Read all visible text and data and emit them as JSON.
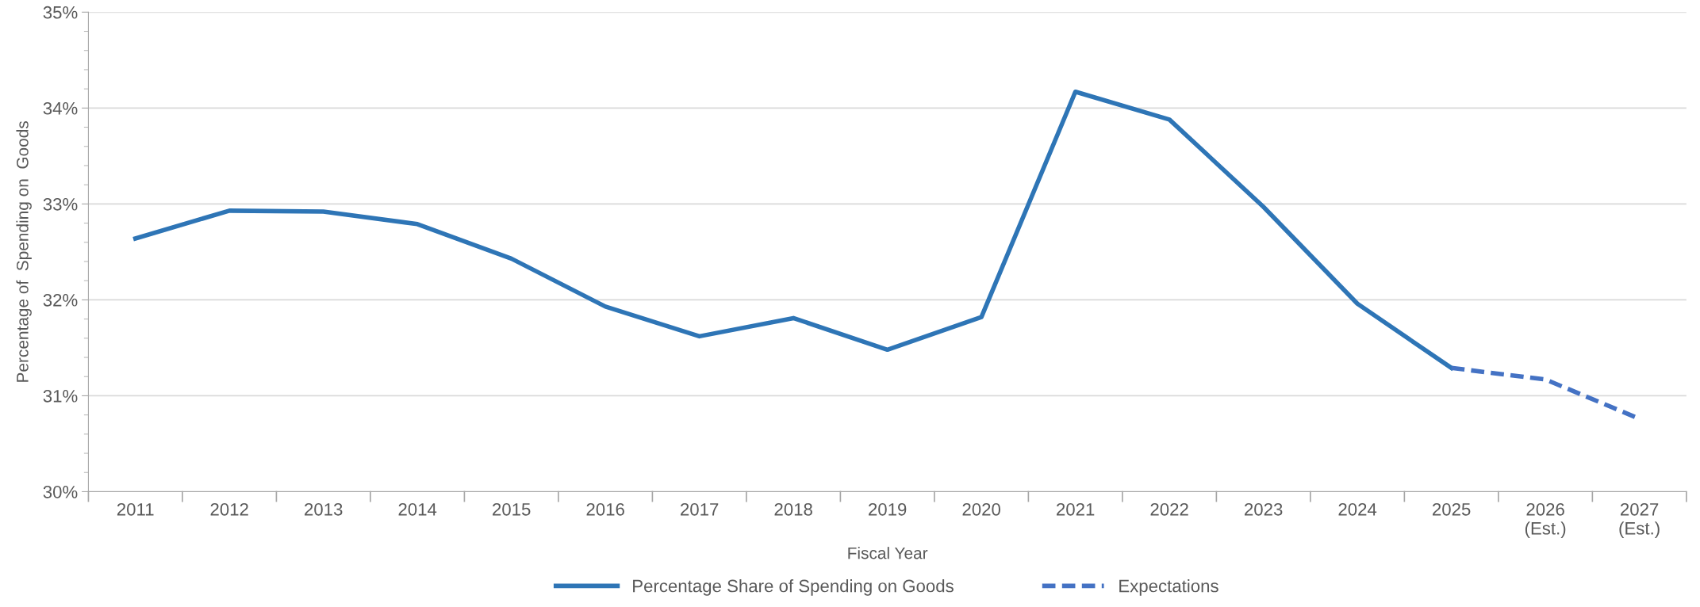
{
  "chart_data": {
    "type": "line",
    "xlabel": "Fiscal Year",
    "ylabel": "Percentage of  Spending on  Goods",
    "categories": [
      "2011",
      "2012",
      "2013",
      "2014",
      "2015",
      "2016",
      "2017",
      "2018",
      "2019",
      "2020",
      "2021",
      "2022",
      "2023",
      "2024",
      "2025",
      "2026\n(Est.)",
      "2027\n(Est.)"
    ],
    "series": [
      {
        "name": "Percentage Share of Spending on Goods",
        "color": "#2e75b6",
        "line_style": "solid",
        "values": [
          32.64,
          32.93,
          32.92,
          32.79,
          32.43,
          31.93,
          31.62,
          31.81,
          31.48,
          31.82,
          34.17,
          33.88,
          32.97,
          31.96,
          31.29,
          null,
          null
        ]
      },
      {
        "name": "Expectations",
        "color": "#4472c4",
        "line_style": "dashed",
        "values": [
          null,
          null,
          null,
          null,
          null,
          null,
          null,
          null,
          null,
          null,
          null,
          null,
          null,
          null,
          31.29,
          31.17,
          30.76
        ]
      }
    ],
    "ylim": [
      30,
      35
    ],
    "yticks": [
      {
        "value": 30,
        "label": "30%"
      },
      {
        "value": 31,
        "label": "31%"
      },
      {
        "value": 32,
        "label": "32%"
      },
      {
        "value": 33,
        "label": "33%"
      },
      {
        "value": 34,
        "label": "34%"
      },
      {
        "value": 35,
        "label": "35%"
      }
    ],
    "grid": "y",
    "legend": "bottom",
    "marker": "none"
  }
}
